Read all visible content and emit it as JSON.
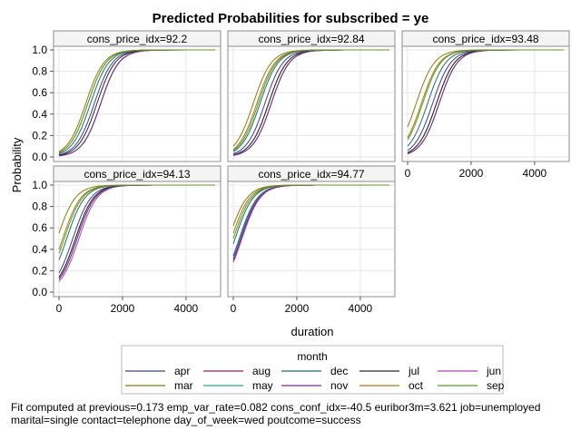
{
  "chart_data": {
    "type": "line",
    "title": "Predicted Probabilities for subscribed = ye",
    "xlabel": "duration",
    "ylabel": "Probability",
    "xlim": [
      0,
      4918
    ],
    "ylim": [
      0,
      1
    ],
    "x_ticks": [
      0,
      2000,
      4000
    ],
    "y_ticks": [
      0.0,
      0.2,
      0.4,
      0.6,
      0.8,
      1.0
    ],
    "y_tick_labels": [
      "0.0",
      "0.2",
      "0.4",
      "0.6",
      "0.8",
      "1.0"
    ],
    "grid": true,
    "legend_title": "month",
    "legend_position": "bottom",
    "x": [
      0,
      100,
      200,
      300,
      400,
      500,
      600,
      700,
      800,
      900,
      1000,
      1100,
      1200,
      1300,
      1400,
      1500,
      1600,
      1700,
      1800,
      1900,
      2000,
      2200,
      2400,
      2600,
      3000,
      3500,
      4000,
      4500,
      4918
    ],
    "months": [
      {
        "name": "apr",
        "color": "#3D3D8E"
      },
      {
        "name": "aug",
        "color": "#8E2A52"
      },
      {
        "name": "dec",
        "color": "#1F6D6D"
      },
      {
        "name": "jul",
        "color": "#2A2A2A"
      },
      {
        "name": "jun",
        "color": "#B045B0"
      },
      {
        "name": "mar",
        "color": "#8A7A10"
      },
      {
        "name": "may",
        "color": "#1AA898"
      },
      {
        "name": "nov",
        "color": "#7A2A8A"
      },
      {
        "name": "oct",
        "color": "#A87A18"
      },
      {
        "name": "sep",
        "color": "#5A9A20"
      }
    ],
    "panels": [
      {
        "label": "cons_price_idx=92.2",
        "month_probability_at_0": {
          "apr": 0.02,
          "aug": 0.01,
          "dec": 0.03,
          "jul": 0.015,
          "jun": 0.01,
          "mar": 0.05,
          "may": 0.01,
          "nov": 0.01,
          "oct": 0.04,
          "sep": 0.04
        }
      },
      {
        "label": "cons_price_idx=92.84",
        "month_probability_at_0": {
          "apr": 0.03,
          "aug": 0.02,
          "dec": 0.05,
          "jul": 0.02,
          "jun": 0.015,
          "mar": 0.1,
          "may": 0.015,
          "nov": 0.015,
          "oct": 0.07,
          "sep": 0.06
        }
      },
      {
        "label": "cons_price_idx=93.48",
        "month_probability_at_0": {
          "apr": 0.06,
          "aug": 0.04,
          "dec": 0.1,
          "jul": 0.04,
          "jun": 0.03,
          "mar": 0.28,
          "may": 0.03,
          "nov": 0.03,
          "oct": 0.18,
          "sep": 0.16
        }
      },
      {
        "label": "cons_price_idx=94.13",
        "month_probability_at_0": {
          "apr": 0.18,
          "aug": 0.14,
          "dec": 0.3,
          "jul": 0.14,
          "jun": 0.1,
          "mar": 0.55,
          "may": 0.12,
          "nov": 0.12,
          "oct": 0.4,
          "sep": 0.36
        }
      },
      {
        "label": "cons_price_idx=94.77",
        "month_probability_at_0": {
          "apr": 0.34,
          "aug": 0.3,
          "dec": 0.45,
          "jul": 0.28,
          "jun": 0.28,
          "mar": 0.62,
          "may": 0.32,
          "nov": 0.3,
          "oct": 0.55,
          "sep": 0.5
        }
      }
    ]
  },
  "footnote": "Fit computed at previous=0.173 emp_var_rate=0.082 cons_conf_idx=-40.5 euribor3m=3.621 job=unemployed\nmarital=single contact=telephone day_of_week=wed poutcome=success"
}
